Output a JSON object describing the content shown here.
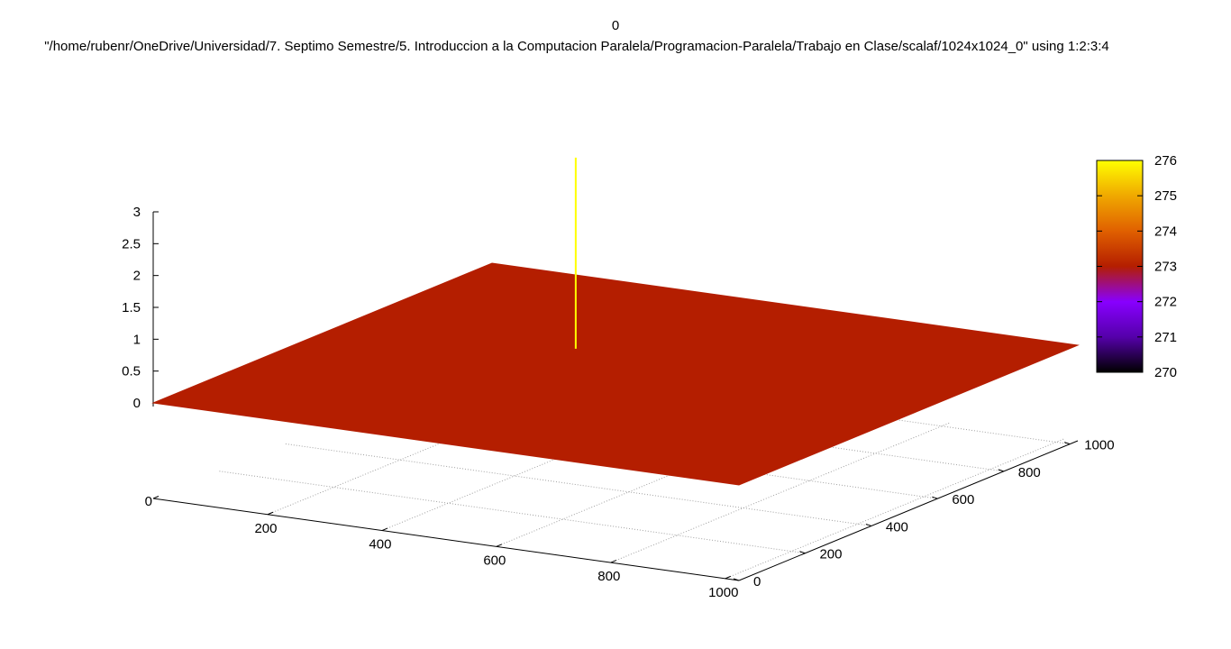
{
  "chart_data": {
    "type": "surface",
    "title": "0",
    "subtitle": "\"/home/rubenr/OneDrive/Universidad/7. Septimo Semestre/5. Introduccion a la Computacion Paralela/Programacion-Paralela/Trabajo en Clase/scalaf/1024x1024_0\" using 1:2:3:4",
    "x_ticks": [
      "0",
      "200",
      "400",
      "600",
      "800",
      "1000"
    ],
    "y_ticks": [
      "0",
      "200",
      "400",
      "600",
      "800",
      "1000"
    ],
    "z_ticks": [
      "0",
      "0.5",
      "1",
      "1.5",
      "2",
      "2.5",
      "3"
    ],
    "xlim": [
      0,
      1024
    ],
    "ylim": [
      0,
      1024
    ],
    "zlim": [
      0,
      3
    ],
    "grid": true,
    "surface": {
      "x_range": [
        0,
        1024
      ],
      "y_range": [
        0,
        1024
      ],
      "z_value": 0,
      "color_value": 273,
      "color": "#b41e00"
    },
    "spike": {
      "x": 380,
      "y": 620,
      "z_range": [
        0,
        3
      ],
      "color_value": 276,
      "color": "#ffff00"
    },
    "colorbox": {
      "ticks": [
        "270",
        "271",
        "272",
        "273",
        "274",
        "275",
        "276"
      ],
      "range": [
        270,
        276
      ],
      "palette": [
        "#000000",
        "#5500aa",
        "#8800ff",
        "#b41e00",
        "#e06000",
        "#f0a800",
        "#ffff00"
      ]
    }
  }
}
